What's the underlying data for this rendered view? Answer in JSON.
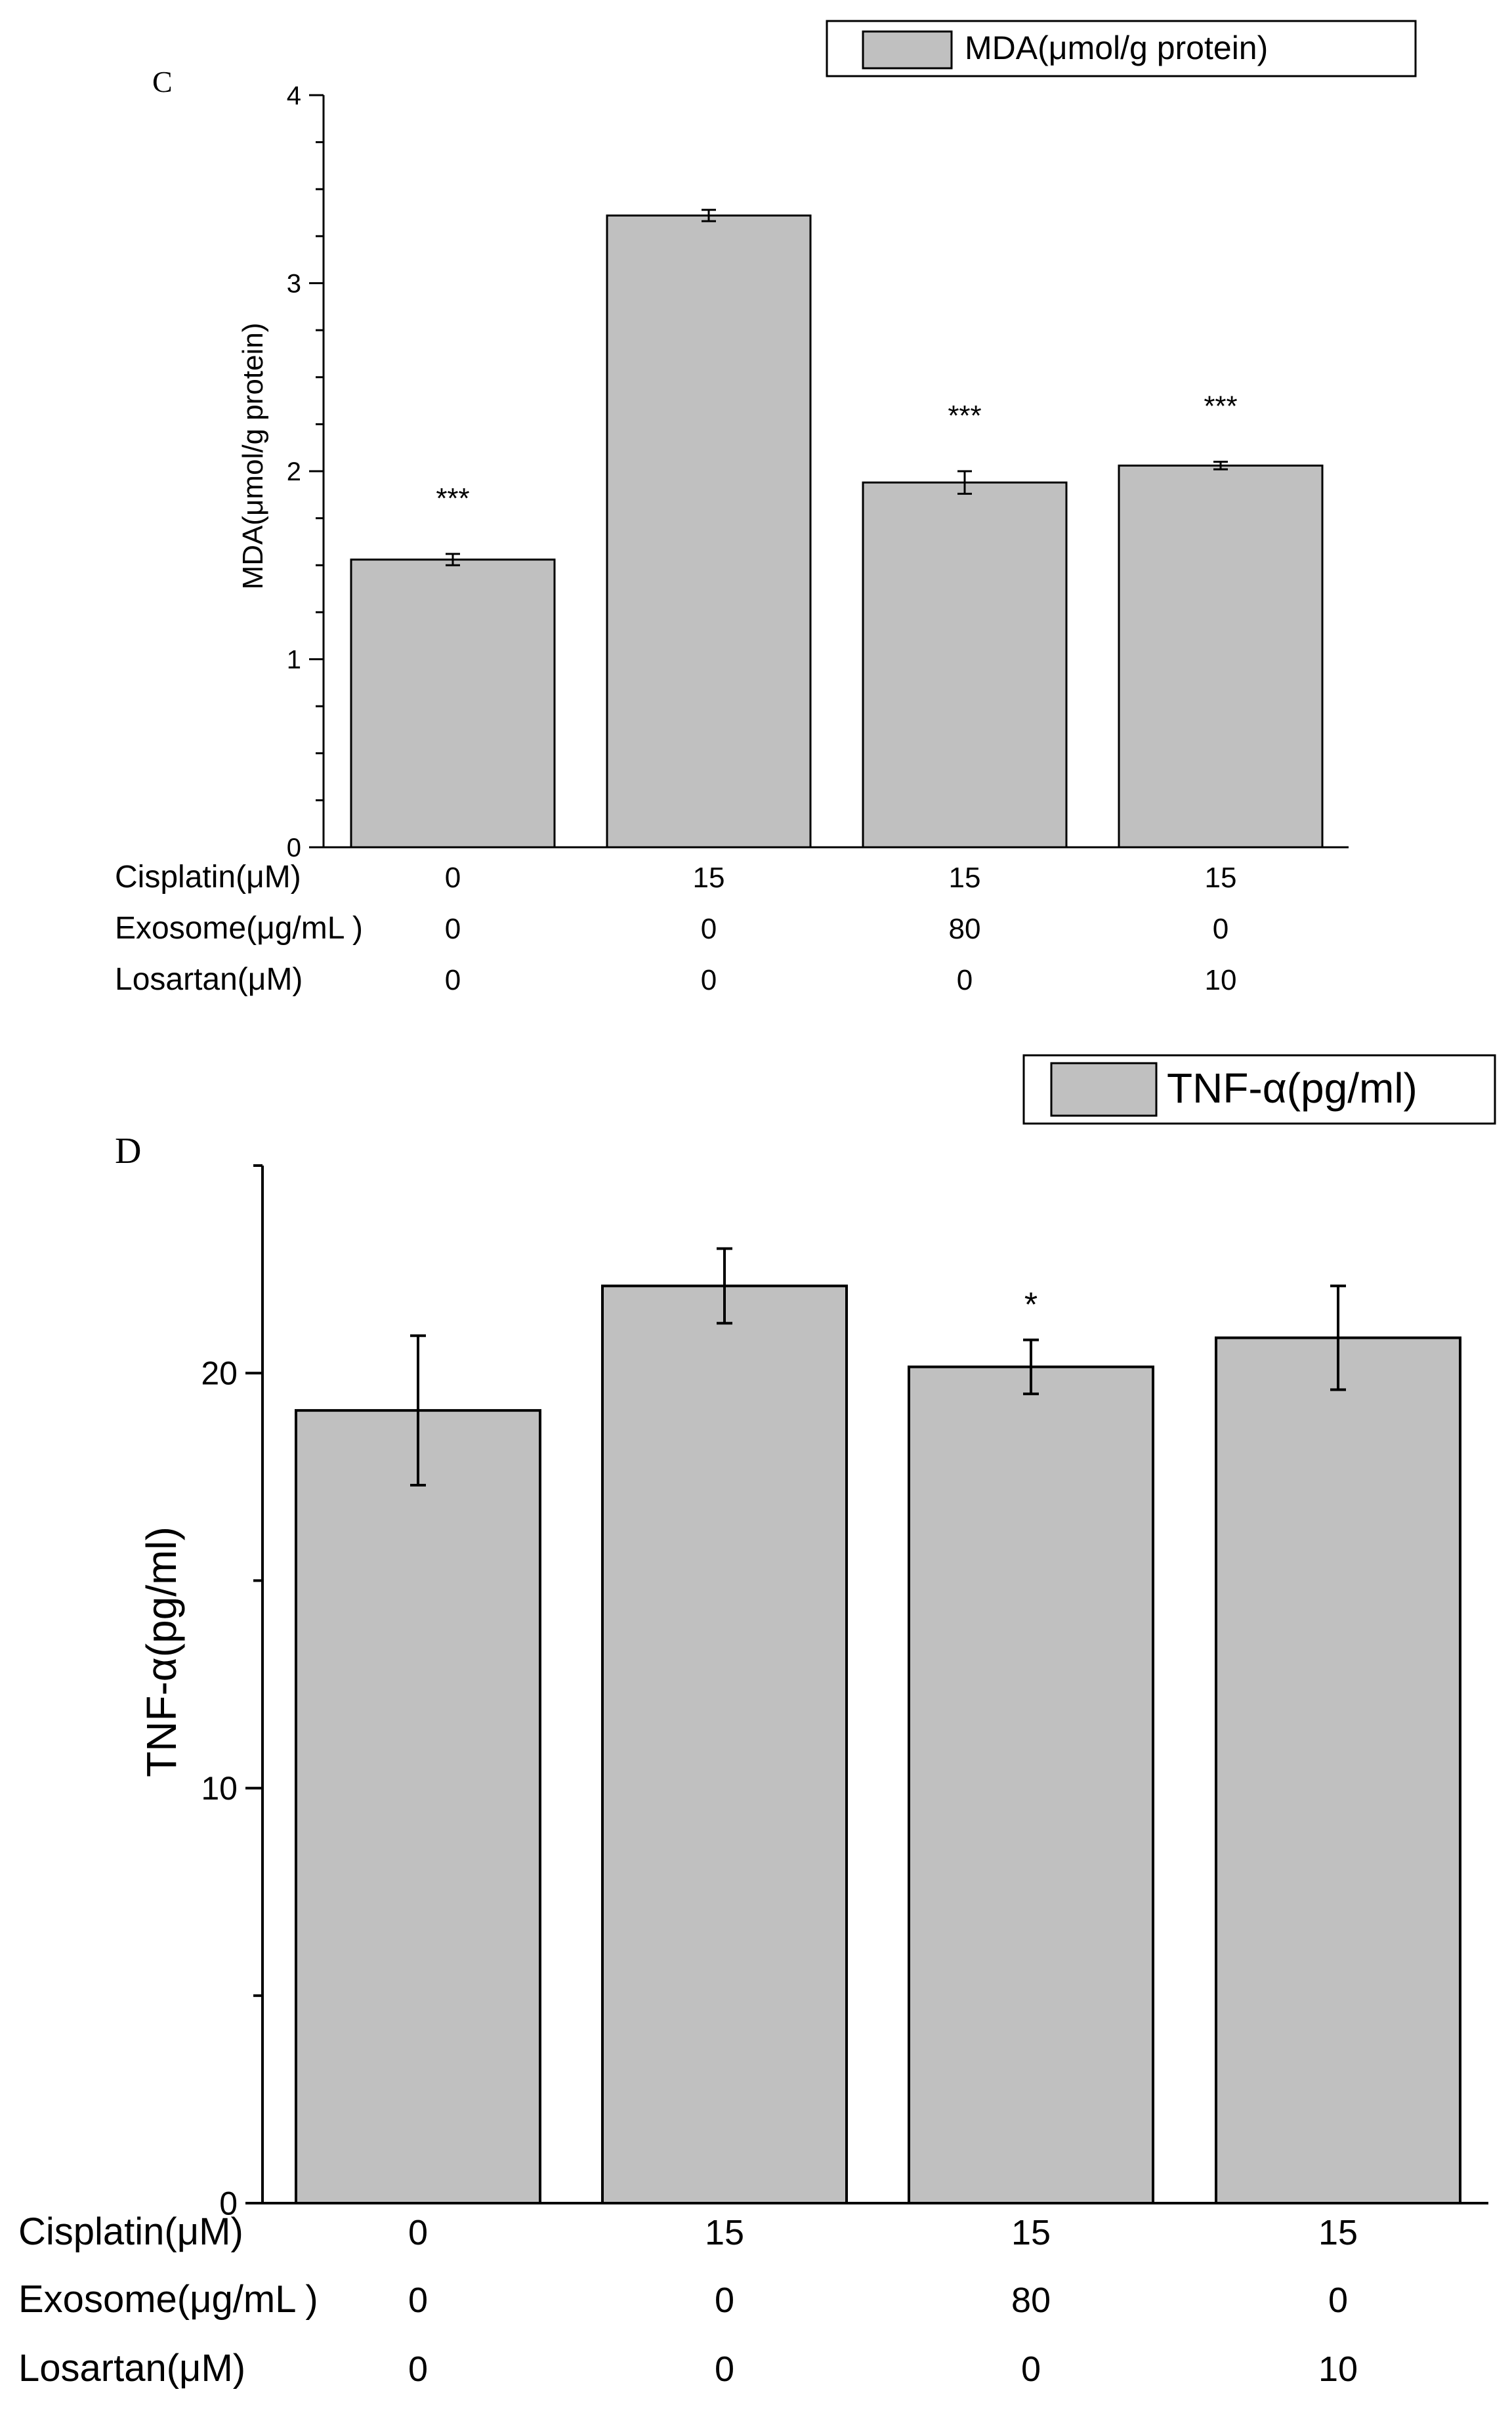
{
  "colors": {
    "bar_fill": "#c0c0c0",
    "bar_stroke": "#000000",
    "axis": "#000000",
    "background": "#ffffff"
  },
  "chart_data": [
    {
      "type": "bar",
      "panel_label": "C",
      "title": "",
      "legend": "MDA(μmol/g protein)",
      "ylabel": "MDA(μmol/g protein)",
      "xlabel": "",
      "ylim": [
        0,
        4
      ],
      "yticks": [
        0,
        1,
        2,
        3,
        4
      ],
      "categories": [
        "0/0/0",
        "15/0/0",
        "15/80/0",
        "15/0/10"
      ],
      "values": [
        1.53,
        3.36,
        1.94,
        2.03
      ],
      "errors": [
        0.03,
        0.03,
        0.06,
        0.02
      ],
      "significance": [
        "***",
        "",
        "***",
        "***"
      ],
      "row_labels": [
        "Cisplatin(μM)",
        "Exosome(μg/mL )",
        "Losartan(μM)"
      ],
      "rows": [
        [
          "0",
          "15",
          "15",
          "15"
        ],
        [
          "0",
          "0",
          "80",
          "0"
        ],
        [
          "0",
          "0",
          "0",
          "10"
        ]
      ]
    },
    {
      "type": "bar",
      "panel_label": "D",
      "title": "",
      "legend": "TNF-α(pg/ml)",
      "ylabel": "TNF-α(pg/ml)",
      "xlabel": "",
      "ylim": [
        0,
        25
      ],
      "yticks": [
        0,
        10,
        20
      ],
      "categories": [
        "0/0/0",
        "15/0/0",
        "15/80/0",
        "15/0/10"
      ],
      "values": [
        19.1,
        22.1,
        20.15,
        20.85
      ],
      "errors": [
        1.8,
        0.9,
        0.65,
        1.25
      ],
      "significance": [
        "",
        "",
        "*",
        ""
      ],
      "row_labels": [
        "Cisplatin(μM)",
        "Exosome(μg/mL )",
        "Losartan(μM)"
      ],
      "rows": [
        [
          "0",
          "15",
          "15",
          "15"
        ],
        [
          "0",
          "0",
          "80",
          "0"
        ],
        [
          "0",
          "0",
          "0",
          "10"
        ]
      ]
    }
  ]
}
